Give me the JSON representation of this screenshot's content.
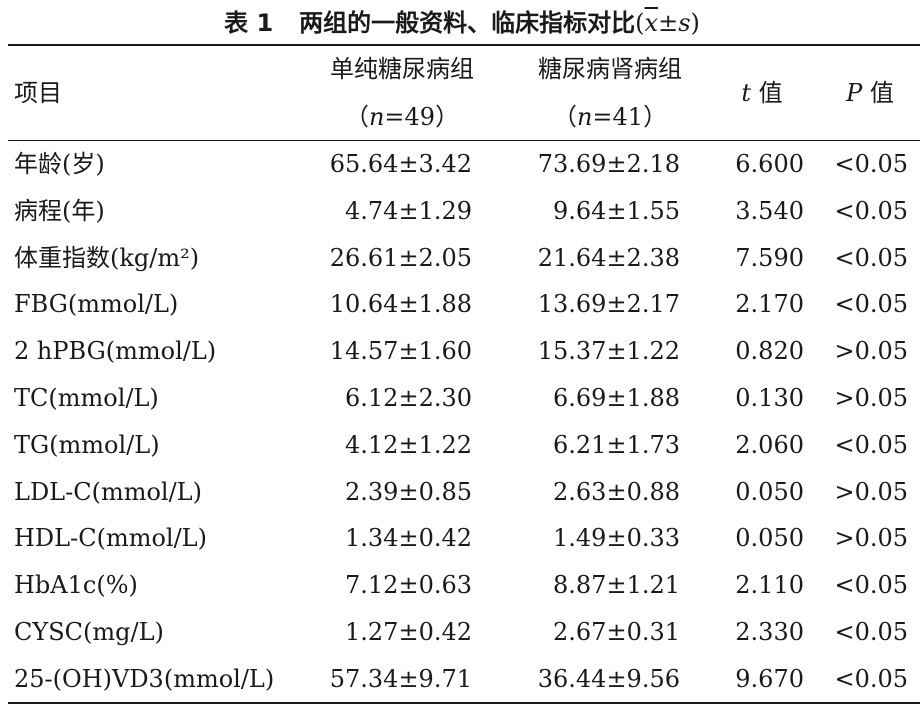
{
  "table": {
    "caption": {
      "number": "表 1",
      "text": "两组的一般资料、临床指标对比",
      "stat_open": "(",
      "stat_xbar": "x",
      "stat_pm": "±",
      "stat_s": "s",
      "stat_close": ")"
    },
    "header": {
      "item": "项目",
      "group1_name": "单纯糖尿病组",
      "group1_n_open": "（",
      "group1_n_var": "n",
      "group1_n_value": "=49",
      "group1_n_close": "）",
      "group2_name": "糖尿病肾病组",
      "group2_n_open": "（",
      "group2_n_var": "n",
      "group2_n_value": "=41",
      "group2_n_close": "）",
      "t_var": "t",
      "t_suffix": " 值",
      "p_var": "P",
      "p_suffix": " 值"
    },
    "rows": [
      {
        "item": "年龄(岁)",
        "group1": "65.64±3.42",
        "group2": "73.69±2.18",
        "t": "6.600",
        "p": "<0.05"
      },
      {
        "item": "病程(年)",
        "group1": "4.74±1.29",
        "group2": "9.64±1.55",
        "t": "3.540",
        "p": "<0.05"
      },
      {
        "item": "体重指数(kg/m²)",
        "group1": "26.61±2.05",
        "group2": "21.64±2.38",
        "t": "7.590",
        "p": "<0.05"
      },
      {
        "item": "FBG(mmol/L)",
        "group1": "10.64±1.88",
        "group2": "13.69±2.17",
        "t": "2.170",
        "p": "<0.05"
      },
      {
        "item": "2 hPBG(mmol/L)",
        "group1": "14.57±1.60",
        "group2": "15.37±1.22",
        "t": "0.820",
        "p": ">0.05"
      },
      {
        "item": "TC(mmol/L)",
        "group1": "6.12±2.30",
        "group2": "6.69±1.88",
        "t": "0.130",
        "p": ">0.05"
      },
      {
        "item": "TG(mmol/L)",
        "group1": "4.12±1.22",
        "group2": "6.21±1.73",
        "t": "2.060",
        "p": "<0.05"
      },
      {
        "item": "LDL-C(mmol/L)",
        "group1": "2.39±0.85",
        "group2": "2.63±0.88",
        "t": "0.050",
        "p": ">0.05"
      },
      {
        "item": "HDL-C(mmol/L)",
        "group1": "1.34±0.42",
        "group2": "1.49±0.33",
        "t": "0.050",
        "p": ">0.05"
      },
      {
        "item": "HbA1c(%)",
        "group1": "7.12±0.63",
        "group2": "8.87±1.21",
        "t": "2.110",
        "p": "<0.05"
      },
      {
        "item": "CYSC(mg/L)",
        "group1": "1.27±0.42",
        "group2": "2.67±0.31",
        "t": "2.330",
        "p": "<0.05"
      },
      {
        "item": "25-(OH)VD3(mmol/L)",
        "group1": "57.34±9.71",
        "group2": "36.44±9.56",
        "t": "9.670",
        "p": "<0.05"
      }
    ]
  }
}
